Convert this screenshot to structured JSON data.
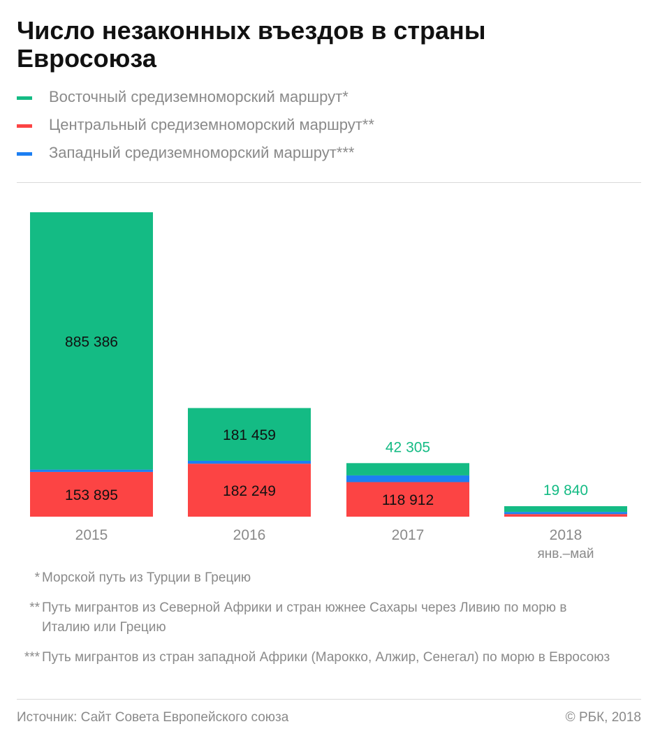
{
  "legend": [
    {
      "label": "Восточный средиземноморский маршрут*",
      "color": "#14bb84"
    },
    {
      "label": "Центральный средиземноморский маршрут**",
      "color": "#fc4444"
    },
    {
      "label": "Западный средиземноморский маршрут***",
      "color": "#1d7ff2"
    }
  ],
  "chart_data": {
    "type": "bar",
    "stacked": true,
    "title": "Число незаконных въездов в страны Евросоюза",
    "categories": [
      "2015",
      "2016",
      "2017",
      "2018"
    ],
    "category_sublabels": [
      "",
      "",
      "",
      "янв.–май"
    ],
    "series": [
      {
        "name": "Центральный средиземноморский маршрут**",
        "color": "#fc4444",
        "values": [
          153895,
          182249,
          118912,
          9000
        ]
      },
      {
        "name": "Западный средиземноморский маршрут***",
        "color": "#1d7ff2",
        "values": [
          8000,
          10000,
          23000,
          6000
        ]
      },
      {
        "name": "Восточный средиземноморский маршрут*",
        "color": "#14bb84",
        "values": [
          885386,
          181459,
          42305,
          19840
        ]
      }
    ],
    "labels": [
      {
        "category": "2015",
        "series": "Восточный средиземноморский маршрут*",
        "text": "885 386",
        "position": "inside"
      },
      {
        "category": "2015",
        "series": "Центральный средиземноморский маршрут**",
        "text": "153 895",
        "position": "inside"
      },
      {
        "category": "2016",
        "series": "Восточный средиземноморский маршрут*",
        "text": "181 459",
        "position": "inside"
      },
      {
        "category": "2016",
        "series": "Центральный средиземноморский маршрут**",
        "text": "182 249",
        "position": "inside"
      },
      {
        "category": "2017",
        "series": "Восточный средиземноморский маршрут*",
        "text": "42 305",
        "position": "above"
      },
      {
        "category": "2017",
        "series": "Центральный средиземноморский маршрут**",
        "text": "118 912",
        "position": "inside"
      },
      {
        "category": "2018",
        "series": "Восточный средиземноморский маршрут*",
        "text": "19 840",
        "position": "above"
      }
    ],
    "grid": false,
    "legend_position": "top-left"
  },
  "notes": [
    {
      "mark": "*",
      "text": "Морской путь из Турции в Грецию"
    },
    {
      "mark": "**",
      "text": "Путь мигрантов из Северной Африки и стран южнее Сахары через Ливию по морю в Италию или Грецию"
    },
    {
      "mark": "***",
      "text": "Путь мигрантов из стран западной Африки (Марокко, Алжир, Сенегал) по морю в Евросоюз"
    }
  ],
  "footer": {
    "source": "Источник: Сайт Совета Европейского союза",
    "copyright": "© РБК, 2018"
  }
}
